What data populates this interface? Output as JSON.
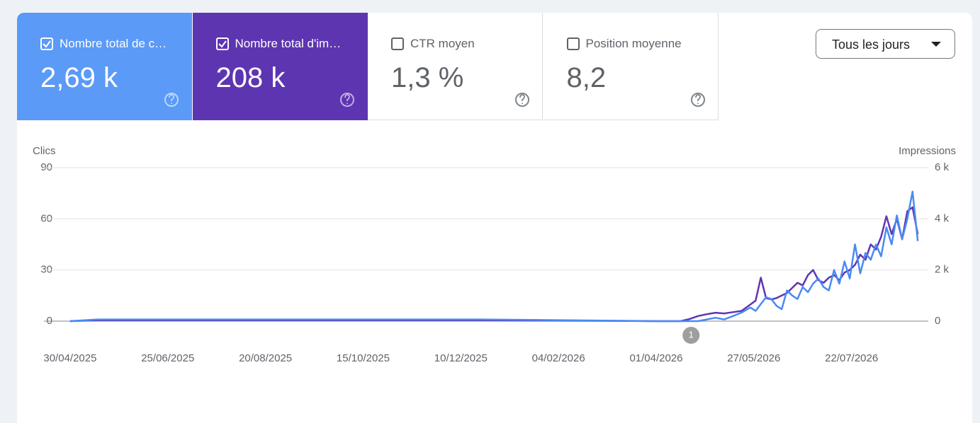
{
  "metrics": [
    {
      "label": "Nombre total de c…",
      "value": "2,69 k",
      "checked": true,
      "background": "#5b9af6",
      "color": "#ffffff"
    },
    {
      "label": "Nombre total d'im…",
      "value": "208 k",
      "checked": true,
      "background": "#5e35b1",
      "color": "#ffffff"
    },
    {
      "label": "CTR moyen",
      "value": "1,3 %",
      "checked": false,
      "background": "#ffffff",
      "color": "#5f6368"
    },
    {
      "label": "Position moyenne",
      "value": "8,2",
      "checked": false,
      "background": "#ffffff",
      "color": "#5f6368"
    }
  ],
  "date_filter": "Tous les jours",
  "chart_data": {
    "type": "line",
    "x": [
      "30/04/2025",
      "16/05/2025",
      "18/08/2025",
      "10/11/2025",
      "21/12/2025",
      "01/04/2026",
      "15/04/2026",
      "20/04/2026",
      "25/04/2026",
      "30/04/2026",
      "05/05/2026",
      "10/05/2026",
      "15/05/2026",
      "20/05/2026",
      "25/05/2026",
      "28/05/2026",
      "31/05/2026",
      "03/06/2026",
      "06/06/2026",
      "09/06/2026",
      "12/06/2026",
      "15/06/2026",
      "18/06/2026",
      "21/06/2026",
      "24/06/2026",
      "27/06/2026",
      "30/06/2026",
      "03/07/2026",
      "06/07/2026",
      "09/07/2026",
      "12/07/2026",
      "15/07/2026",
      "18/07/2026",
      "21/07/2026",
      "24/07/2026",
      "27/07/2026",
      "30/07/2026",
      "02/08/2026",
      "05/08/2026",
      "08/08/2026",
      "11/08/2026",
      "14/08/2026",
      "17/08/2026",
      "20/08/2026",
      "23/08/2026",
      "26/08/2026",
      "29/08/2026"
    ],
    "series": [
      {
        "name": "Impressions",
        "color": "#5e35b1",
        "axis": "y2",
        "values": [
          0,
          40,
          40,
          40,
          40,
          0,
          0,
          80,
          200,
          270,
          330,
          300,
          350,
          400,
          650,
          800,
          1700,
          900,
          850,
          900,
          1000,
          1100,
          1300,
          1500,
          1400,
          1800,
          2000,
          1600,
          1500,
          1700,
          1800,
          1600,
          1900,
          2000,
          2200,
          2600,
          2400,
          3000,
          2800,
          3300,
          4100,
          3400,
          4000,
          3200,
          4300,
          4450,
          3400
        ]
      },
      {
        "name": "Clics",
        "color": "#4a8af4",
        "values": [
          0,
          1,
          1,
          1,
          1,
          0,
          0,
          0,
          0,
          1,
          2,
          1,
          3,
          5,
          8,
          6,
          10,
          14,
          13,
          9,
          7,
          18,
          15,
          13,
          20,
          17,
          22,
          25,
          20,
          18,
          30,
          22,
          35,
          25,
          45,
          28,
          40,
          36,
          45,
          38,
          55,
          45,
          62,
          48,
          60,
          76,
          47
        ]
      }
    ],
    "xlim": [
      "15/04/2025",
      "04/09/2026"
    ],
    "xticks": [
      "30/04/2025",
      "25/06/2025",
      "20/08/2025",
      "15/10/2025",
      "10/12/2025",
      "04/02/2026",
      "01/04/2026",
      "27/05/2026",
      "22/07/2026"
    ],
    "ylim": [
      0,
      90
    ],
    "yticks": [
      0,
      30,
      60,
      90
    ],
    "y2lim": [
      0,
      6000
    ],
    "y2ticks": [
      0,
      {
        "value": 2000,
        "label": "2 k"
      },
      {
        "value": 4000,
        "label": "4 k"
      },
      {
        "value": 6000,
        "label": "6 k"
      }
    ],
    "grid": true,
    "annotations": [
      {
        "x": "21/04/2026",
        "label": "1"
      }
    ]
  }
}
